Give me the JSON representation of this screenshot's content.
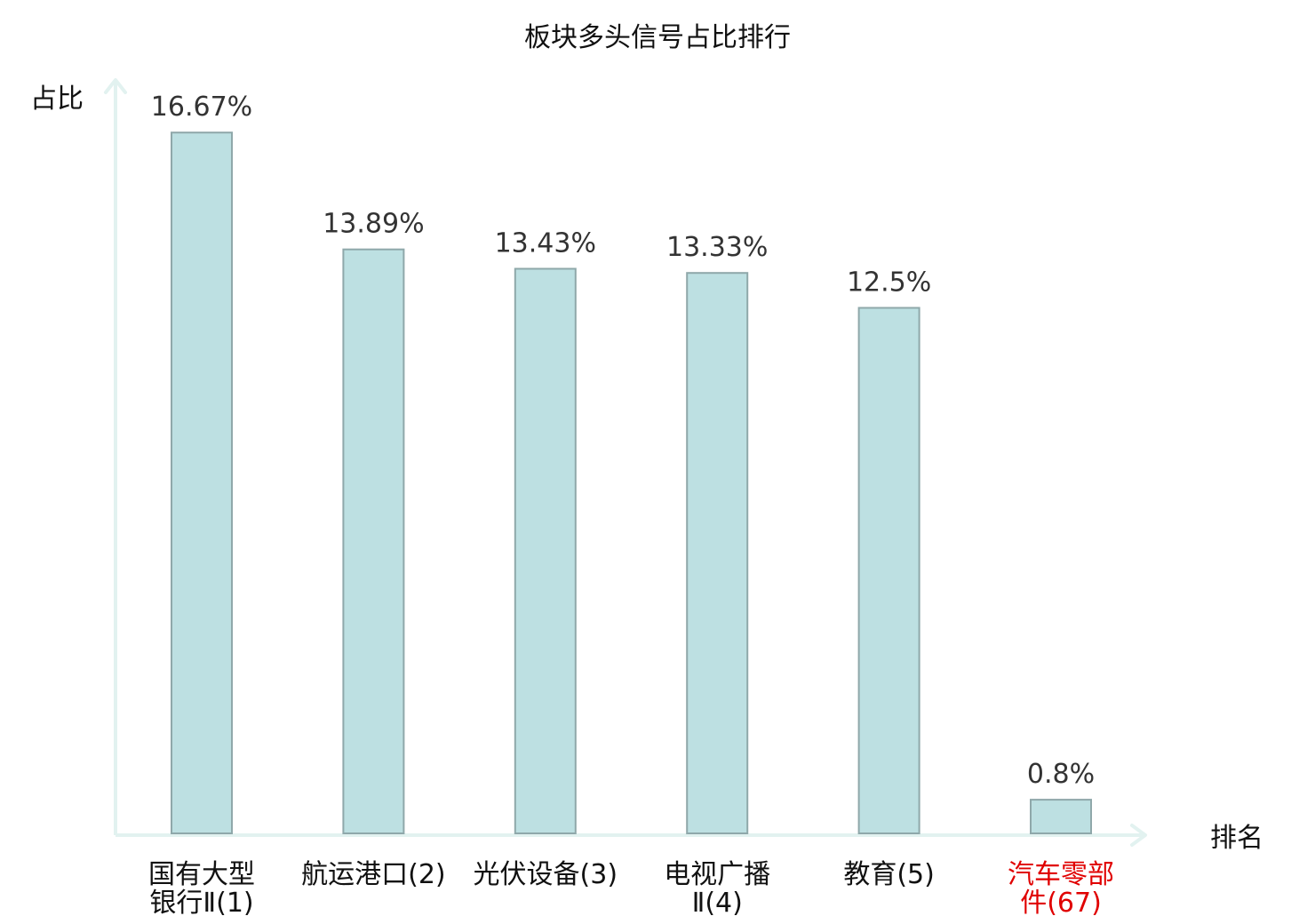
{
  "chart_data": {
    "type": "bar",
    "title": "板块多头信号占比排行",
    "xlabel": "排名",
    "ylabel": "占比",
    "categories": [
      {
        "lines": [
          "国有大型",
          "银行Ⅱ(1)"
        ],
        "highlight": false
      },
      {
        "lines": [
          "航运港口(2)"
        ],
        "highlight": false
      },
      {
        "lines": [
          "光伏设备(3)"
        ],
        "highlight": false
      },
      {
        "lines": [
          "电视广播",
          "Ⅱ(4)"
        ],
        "highlight": false
      },
      {
        "lines": [
          "教育(5)"
        ],
        "highlight": false
      },
      {
        "lines": [
          "汽车零部",
          "件(67)"
        ],
        "highlight": true
      }
    ],
    "values": [
      16.67,
      13.89,
      13.43,
      13.33,
      12.5,
      0.8
    ],
    "value_labels": [
      "16.67%",
      "13.89%",
      "13.43%",
      "13.33%",
      "12.5%",
      "0.8%"
    ],
    "ylim": [
      0,
      17.9
    ],
    "grid": false,
    "colors": {
      "bar_fill": "#bde0e2",
      "bar_stroke": "#8fa8aa",
      "axis": "#e2f2f0",
      "highlight_label": "#e00000"
    }
  }
}
